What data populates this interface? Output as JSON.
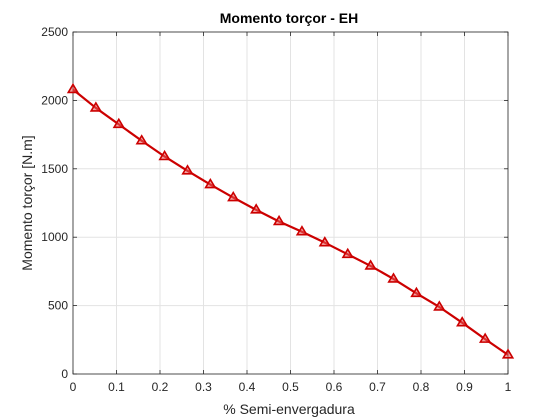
{
  "chart_data": {
    "type": "line",
    "title": "Momento torçor - EH",
    "xlabel": "% Semi-envergadura",
    "ylabel": "Momento torçor [N.m]",
    "xlim": [
      0,
      1
    ],
    "ylim": [
      0,
      2500
    ],
    "xticks": [
      "0",
      "0.1",
      "0.2",
      "0.3",
      "0.4",
      "0.5",
      "0.6",
      "0.7",
      "0.8",
      "0.9",
      "1"
    ],
    "yticks": [
      "0",
      "500",
      "1000",
      "1500",
      "2000",
      "2500"
    ],
    "grid": true,
    "series": [
      {
        "color": "#cc0000",
        "marker": "triangle",
        "x": [
          0,
          0.0526,
          0.1053,
          0.1579,
          0.2105,
          0.2632,
          0.3158,
          0.3684,
          0.4211,
          0.4737,
          0.5263,
          0.5789,
          0.6316,
          0.6842,
          0.7368,
          0.7895,
          0.8421,
          0.8947,
          0.9474,
          1.0
        ],
        "y": [
          2080,
          1945,
          1825,
          1705,
          1590,
          1485,
          1385,
          1290,
          1200,
          1115,
          1040,
          960,
          875,
          790,
          695,
          590,
          490,
          375,
          255,
          140
        ]
      }
    ]
  }
}
